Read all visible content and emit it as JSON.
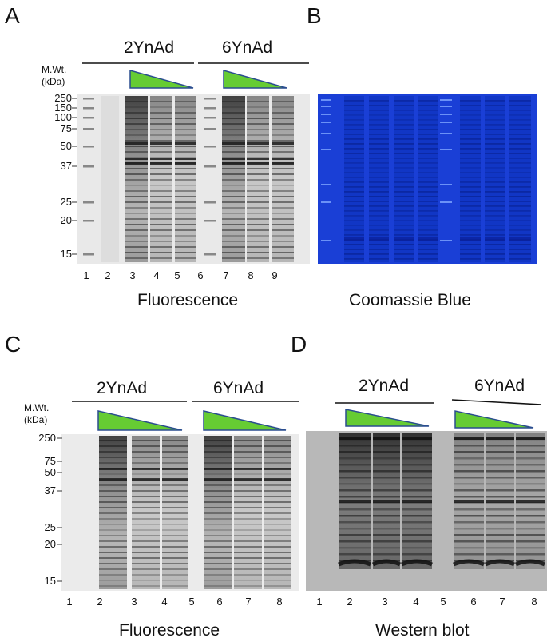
{
  "panels": {
    "A": {
      "letter": "A",
      "mw_label_1": "M.Wt.",
      "mw_label_2": "(kDa)",
      "group_1": "2YnAd",
      "group_2": "6YnAd",
      "mw_ticks": [
        "250",
        "150",
        "100",
        "75",
        "50",
        "37",
        "25",
        "20",
        "15"
      ],
      "lanes": [
        "1",
        "2",
        "3",
        "4",
        "5",
        "6",
        "7",
        "8",
        "9"
      ],
      "caption": "Fluorescence"
    },
    "B": {
      "letter": "B",
      "caption": "Coomassie Blue"
    },
    "C": {
      "letter": "C",
      "mw_label_1": "M.Wt.",
      "mw_label_2": "(kDa)",
      "group_1": "2YnAd",
      "group_2": "6YnAd",
      "mw_ticks": [
        "250",
        "75",
        "50",
        "37",
        "25",
        "20",
        "15"
      ],
      "lanes": [
        "1",
        "2",
        "3",
        "4",
        "5",
        "6",
        "7",
        "8"
      ],
      "caption": "Fluorescence"
    },
    "D": {
      "letter": "D",
      "group_1": "2YnAd",
      "group_2": "6YnAd",
      "lanes": [
        "1",
        "2",
        "3",
        "4",
        "5",
        "6",
        "7",
        "8"
      ],
      "caption": "Western blot"
    }
  },
  "colors": {
    "wedge_fill": "#66cc33",
    "wedge_stroke": "#2a4d8f",
    "coomassie": "#1a3fd6",
    "fluor_band": "#333333",
    "western_bg": "#b8b8b8"
  }
}
